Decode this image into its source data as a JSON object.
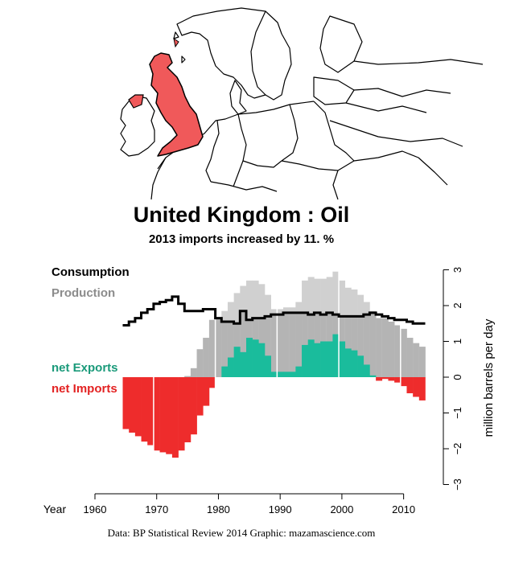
{
  "title": "United Kingdom :  Oil",
  "subtitle": "2013 imports increased by 11. %",
  "credit": "Data: BP Statistical Review 2014    Graphic: mazamascience.com",
  "colors": {
    "uk_fill": "#f0595a",
    "production": "#d0d0d0",
    "production_dark": "#b4b4b4",
    "net_exports": "#1abc9c",
    "net_imports": "#ee2c2c",
    "consumption": "#000000"
  },
  "chart_data": {
    "type": "bar",
    "x": [
      1965,
      1966,
      1967,
      1968,
      1969,
      1970,
      1971,
      1972,
      1973,
      1974,
      1975,
      1976,
      1977,
      1978,
      1979,
      1980,
      1981,
      1982,
      1983,
      1984,
      1985,
      1986,
      1987,
      1988,
      1989,
      1990,
      1991,
      1992,
      1993,
      1994,
      1995,
      1996,
      1997,
      1998,
      1999,
      2000,
      2001,
      2002,
      2003,
      2004,
      2005,
      2006,
      2007,
      2008,
      2009,
      2010,
      2011,
      2012,
      2013
    ],
    "series": [
      {
        "name": "Consumption",
        "values": [
          1.45,
          1.55,
          1.65,
          1.8,
          1.9,
          2.05,
          2.1,
          2.15,
          2.25,
          2.05,
          1.85,
          1.85,
          1.85,
          1.9,
          1.9,
          1.65,
          1.55,
          1.55,
          1.5,
          1.85,
          1.6,
          1.65,
          1.65,
          1.7,
          1.75,
          1.75,
          1.8,
          1.8,
          1.8,
          1.8,
          1.75,
          1.8,
          1.75,
          1.8,
          1.75,
          1.7,
          1.7,
          1.7,
          1.7,
          1.75,
          1.8,
          1.75,
          1.7,
          1.65,
          1.6,
          1.6,
          1.55,
          1.5,
          1.5
        ]
      },
      {
        "name": "Production",
        "values": [
          0,
          0,
          0,
          0,
          0,
          0,
          0,
          0,
          0,
          0,
          0.03,
          0.25,
          0.78,
          1.1,
          1.6,
          1.65,
          1.85,
          2.1,
          2.35,
          2.55,
          2.7,
          2.7,
          2.6,
          2.3,
          1.9,
          1.9,
          1.95,
          1.95,
          2.1,
          2.7,
          2.8,
          2.75,
          2.75,
          2.8,
          2.95,
          2.7,
          2.5,
          2.45,
          2.3,
          2.1,
          1.85,
          1.65,
          1.65,
          1.55,
          1.45,
          1.35,
          1.1,
          0.95,
          0.85
        ]
      },
      {
        "name": "net Exports",
        "values": [
          0,
          0,
          0,
          0,
          0,
          0,
          0,
          0,
          0,
          0,
          0,
          0,
          0,
          0,
          0,
          0,
          0.3,
          0.55,
          0.85,
          0.7,
          1.1,
          1.05,
          0.95,
          0.6,
          0.15,
          0.15,
          0.15,
          0.15,
          0.3,
          0.9,
          1.05,
          0.95,
          1.0,
          1.0,
          1.2,
          1.0,
          0.8,
          0.75,
          0.6,
          0.35,
          0.05,
          0,
          0,
          0,
          0,
          0,
          0,
          0,
          0
        ]
      },
      {
        "name": "net Imports",
        "values": [
          -1.45,
          -1.55,
          -1.65,
          -1.8,
          -1.9,
          -2.05,
          -2.1,
          -2.15,
          -2.25,
          -2.05,
          -1.82,
          -1.6,
          -1.07,
          -0.8,
          -0.3,
          0,
          0,
          0,
          0,
          0,
          0,
          0,
          0,
          0,
          0,
          0,
          0,
          0,
          0,
          0,
          0,
          0,
          0,
          0,
          0,
          0,
          0,
          0,
          0,
          0,
          0,
          -0.1,
          -0.05,
          -0.1,
          -0.15,
          -0.25,
          -0.45,
          -0.55,
          -0.65
        ]
      }
    ],
    "xlabel": "Year",
    "ylabel": "million barrels per day",
    "xticks": [
      1960,
      1970,
      1980,
      1990,
      2000,
      2010
    ],
    "xlim": [
      1960,
      2015
    ],
    "yticks": [
      -3,
      -2,
      -1,
      0,
      1,
      2,
      3
    ],
    "ylim": [
      -3,
      3
    ],
    "legend": [
      "Consumption",
      "Production",
      "net Exports",
      "net Imports"
    ]
  }
}
